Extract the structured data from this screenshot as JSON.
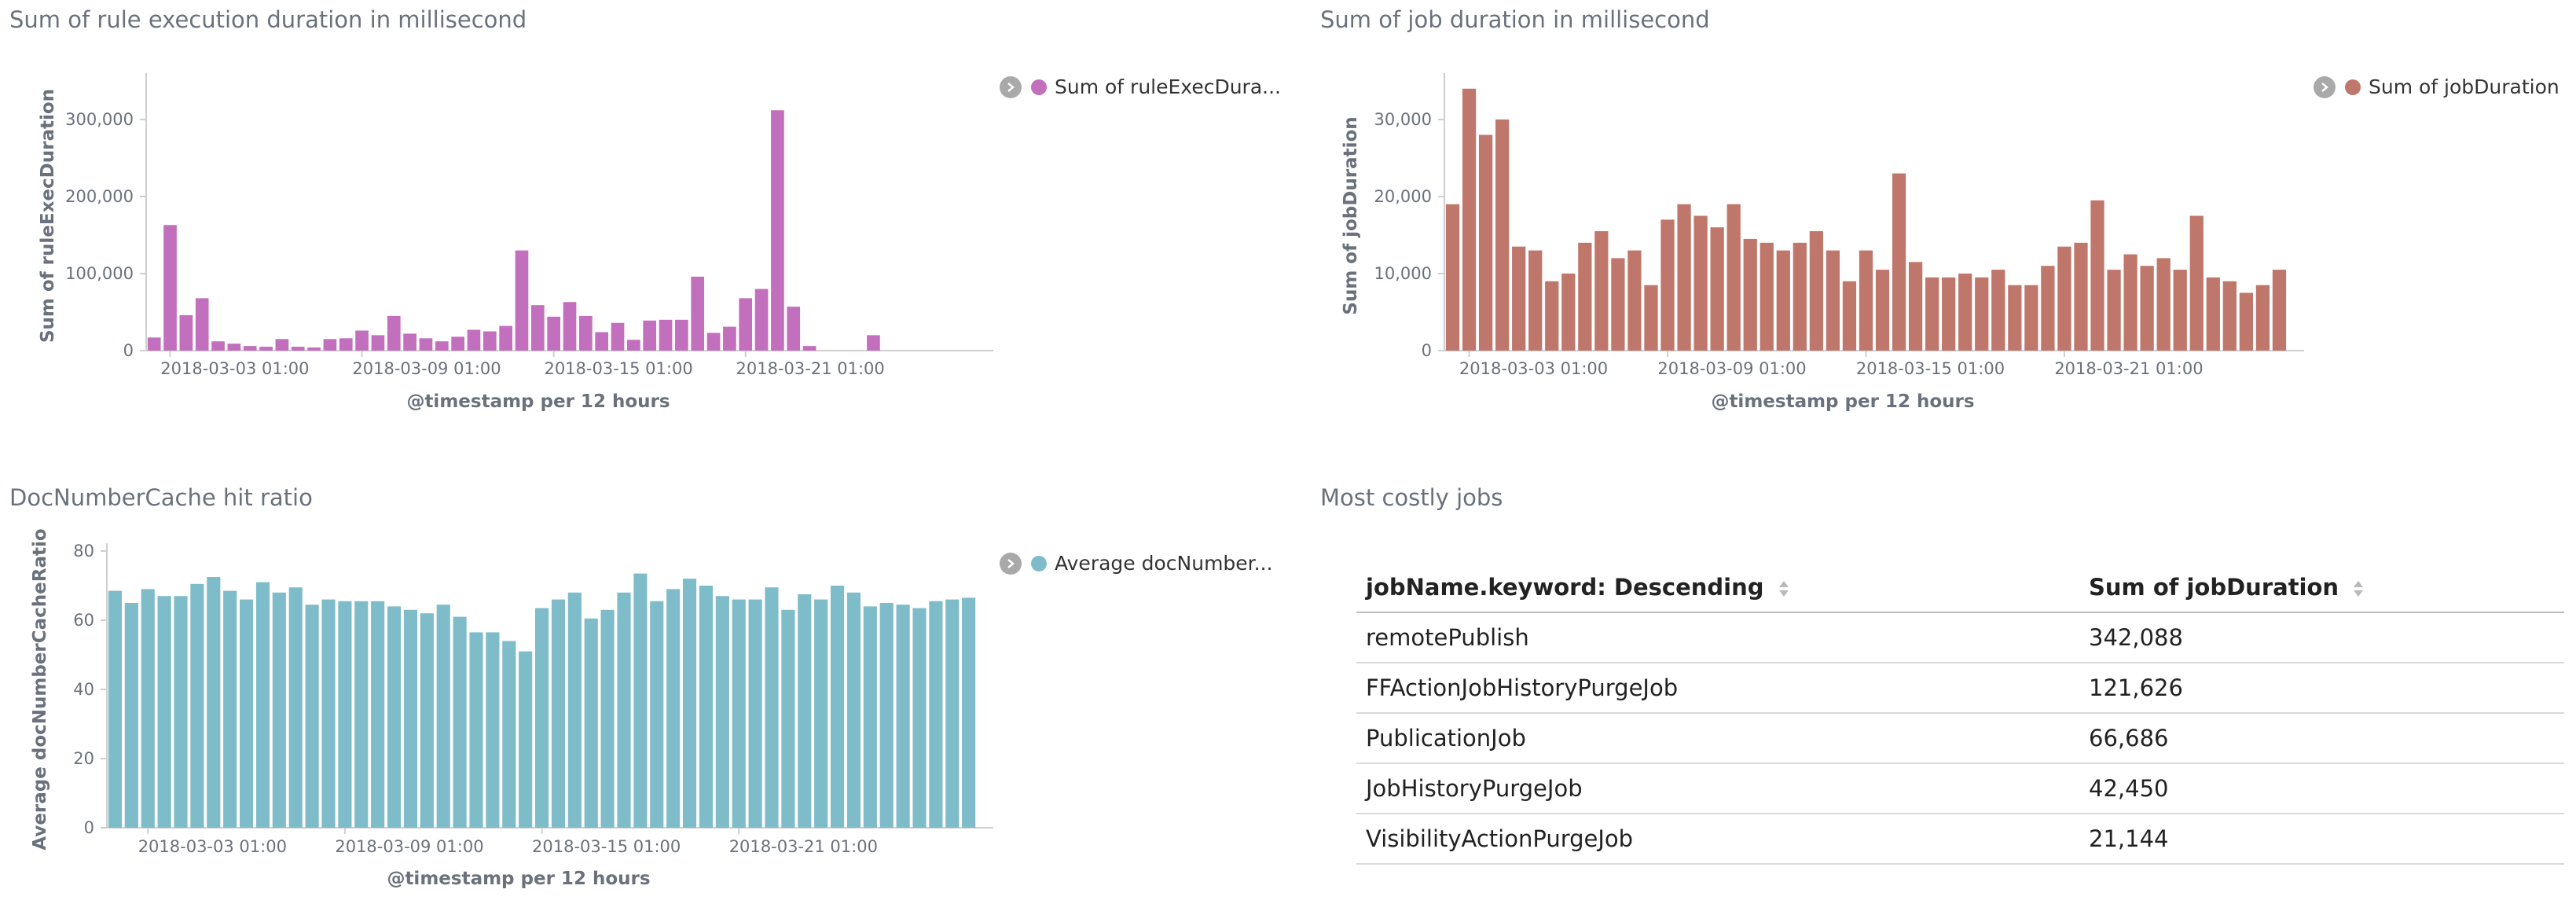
{
  "panels": {
    "rule": {
      "title": "Sum of rule execution duration in millisecond",
      "legend_label": "Sum of ruleExecDura...",
      "color": "#c26fbd"
    },
    "job": {
      "title": "Sum of job duration in millisecond",
      "legend_label": "Sum of jobDuration",
      "color": "#c0776b"
    },
    "cache": {
      "title": "DocNumberCache hit ratio",
      "legend_label": "Average docNumber...",
      "color": "#7ebcc9"
    },
    "table": {
      "title": "Most costly jobs",
      "columns": [
        "jobName.keyword: Descending",
        "Sum of jobDuration"
      ],
      "rows": [
        [
          "remotePublish",
          "342,088"
        ],
        [
          "FFActionJobHistoryPurgeJob",
          "121,626"
        ],
        [
          "PublicationJob",
          "66,686"
        ],
        [
          "JobHistoryPurgeJob",
          "42,450"
        ],
        [
          "VisibilityActionPurgeJob",
          "21,144"
        ]
      ]
    }
  },
  "chart_data": [
    {
      "id": "rule",
      "type": "bar",
      "title": "Sum of rule execution duration in millisecond",
      "xlabel": "@timestamp per 12 hours",
      "ylabel": "Sum of ruleExecDuration",
      "ylim": [
        0,
        350000
      ],
      "yticks": [
        0,
        100000,
        200000,
        300000
      ],
      "ytick_labels": [
        "0",
        "100,000",
        "200,000",
        "300,000"
      ],
      "xticks": [
        1,
        13,
        25,
        37
      ],
      "xtick_labels": [
        "2018-03-03 01:00",
        "2018-03-09 01:00",
        "2018-03-15 01:00",
        "2018-03-21 01:00"
      ],
      "slots": 53,
      "values": [
        17000,
        163000,
        46000,
        68000,
        12000,
        9000,
        6000,
        5000,
        15000,
        5000,
        4000,
        15000,
        16000,
        26000,
        20000,
        45000,
        22000,
        16000,
        12000,
        18000,
        27000,
        25000,
        32000,
        130000,
        59000,
        44000,
        63000,
        45000,
        24000,
        36000,
        14000,
        39000,
        40000,
        40000,
        96000,
        23000,
        31000,
        68000,
        80000,
        312000,
        57000,
        6000,
        0,
        0,
        0,
        20000,
        0,
        0,
        0,
        0,
        0,
        0,
        0
      ],
      "legend": "top-right",
      "grid": false
    },
    {
      "id": "job",
      "type": "bar",
      "title": "Sum of job duration in millisecond",
      "xlabel": "@timestamp per 12 hours",
      "ylabel": "Sum of jobDuration",
      "ylim": [
        0,
        35000
      ],
      "yticks": [
        0,
        10000,
        20000,
        30000
      ],
      "ytick_labels": [
        "0",
        "10,000",
        "20,000",
        "30,000"
      ],
      "xticks": [
        1,
        13,
        25,
        37
      ],
      "xtick_labels": [
        "2018-03-03 01:00",
        "2018-03-09 01:00",
        "2018-03-15 01:00",
        "2018-03-21 01:00"
      ],
      "slots": 52,
      "values": [
        19000,
        34000,
        28000,
        30000,
        13500,
        13000,
        9000,
        10000,
        14000,
        15500,
        12000,
        13000,
        8500,
        17000,
        19000,
        17500,
        16000,
        19000,
        14500,
        14000,
        13000,
        14000,
        15500,
        13000,
        9000,
        13000,
        10500,
        23000,
        11500,
        9500,
        9500,
        10000,
        9500,
        10500,
        8500,
        8500,
        11000,
        13500,
        14000,
        19500,
        10500,
        12500,
        11000,
        12000,
        10500,
        17500,
        9500,
        9000,
        7500,
        8500,
        10500,
        0
      ],
      "legend": "top-right",
      "grid": false
    },
    {
      "id": "cache",
      "type": "bar",
      "title": "DocNumberCache hit ratio",
      "xlabel": "@timestamp per 12 hours",
      "ylabel": "Average docNumberCacheRatio",
      "ylim": [
        0,
        80
      ],
      "yticks": [
        0,
        20,
        40,
        60,
        80
      ],
      "ytick_labels": [
        "0",
        "20",
        "40",
        "60",
        "80"
      ],
      "xticks": [
        2,
        14,
        26,
        38
      ],
      "xtick_labels": [
        "2018-03-03 01:00",
        "2018-03-09 01:00",
        "2018-03-15 01:00",
        "2018-03-21 01:00"
      ],
      "slots": 54,
      "values": [
        68.5,
        65,
        69,
        67,
        67,
        70.5,
        72.5,
        68.5,
        66,
        71,
        68,
        69.5,
        64.5,
        66,
        65.5,
        65.5,
        65.5,
        64,
        63,
        62,
        64.5,
        61,
        56.5,
        56.5,
        54,
        51,
        63.5,
        66,
        68,
        60.5,
        63,
        68,
        73.5,
        65.5,
        69,
        72,
        70,
        67,
        66,
        66,
        69.5,
        63,
        67.5,
        66,
        70,
        68,
        64,
        65,
        64.5,
        63.5,
        65.5,
        66,
        66.5,
        0
      ],
      "legend": "top-right",
      "grid": false
    }
  ]
}
